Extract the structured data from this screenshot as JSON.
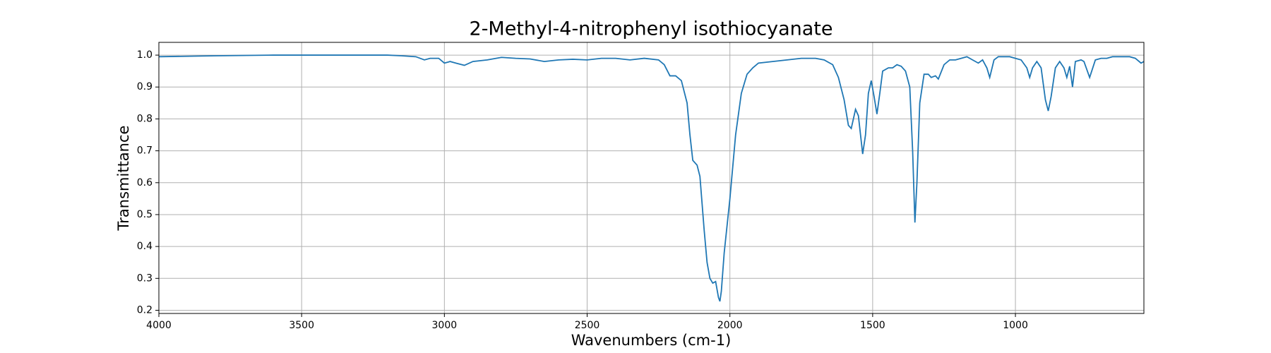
{
  "chart_data": {
    "type": "line",
    "title": "2-Methyl-4-nitrophenyl isothiocyanate",
    "x_label": "Wavenumbers (cm-1)",
    "y_label": "Transmittance",
    "xlim": [
      4000,
      550
    ],
    "ylim": [
      0.19,
      1.04
    ],
    "xticks": [
      4000,
      3500,
      3000,
      2500,
      2000,
      1500,
      1000
    ],
    "yticks": [
      0.2,
      0.3,
      0.4,
      0.5,
      0.6,
      0.7,
      0.8,
      0.9,
      {
        "value": 1,
        "label": "1.0"
      }
    ],
    "grid": true,
    "series": [
      {
        "color": "#1f77b4",
        "x": [
          4000,
          3800,
          3600,
          3400,
          3200,
          3150,
          3100,
          3070,
          3050,
          3020,
          3000,
          2980,
          2960,
          2930,
          2900,
          2850,
          2800,
          2750,
          2700,
          2650,
          2600,
          2550,
          2500,
          2450,
          2400,
          2350,
          2300,
          2250,
          2230,
          2210,
          2190,
          2170,
          2150,
          2140,
          2130,
          2115,
          2105,
          2090,
          2080,
          2070,
          2060,
          2050,
          2040,
          2035,
          2030,
          2020,
          2000,
          1980,
          1960,
          1940,
          1920,
          1900,
          1850,
          1800,
          1750,
          1700,
          1670,
          1640,
          1620,
          1600,
          1585,
          1575,
          1560,
          1550,
          1535,
          1525,
          1515,
          1505,
          1495,
          1485,
          1475,
          1465,
          1445,
          1430,
          1415,
          1400,
          1385,
          1370,
          1360,
          1352,
          1345,
          1335,
          1320,
          1305,
          1295,
          1280,
          1270,
          1250,
          1230,
          1210,
          1190,
          1170,
          1150,
          1130,
          1115,
          1100,
          1090,
          1075,
          1060,
          1020,
          1000,
          980,
          960,
          950,
          940,
          925,
          910,
          895,
          885,
          875,
          860,
          845,
          830,
          820,
          810,
          800,
          790,
          770,
          760,
          740,
          720,
          700,
          680,
          660,
          640,
          600,
          580,
          560,
          550
        ],
        "values": [
          0.995,
          0.998,
          1.0,
          1.0,
          1.0,
          0.998,
          0.995,
          0.985,
          0.99,
          0.99,
          0.975,
          0.98,
          0.975,
          0.968,
          0.98,
          0.985,
          0.993,
          0.99,
          0.988,
          0.98,
          0.985,
          0.987,
          0.985,
          0.99,
          0.99,
          0.985,
          0.99,
          0.985,
          0.97,
          0.935,
          0.935,
          0.92,
          0.85,
          0.75,
          0.67,
          0.655,
          0.62,
          0.45,
          0.35,
          0.3,
          0.285,
          0.29,
          0.24,
          0.228,
          0.26,
          0.38,
          0.55,
          0.75,
          0.88,
          0.94,
          0.96,
          0.975,
          0.98,
          0.985,
          0.99,
          0.99,
          0.985,
          0.97,
          0.93,
          0.86,
          0.78,
          0.77,
          0.83,
          0.81,
          0.69,
          0.75,
          0.88,
          0.92,
          0.87,
          0.815,
          0.88,
          0.95,
          0.96,
          0.96,
          0.97,
          0.965,
          0.95,
          0.9,
          0.7,
          0.475,
          0.6,
          0.85,
          0.94,
          0.94,
          0.93,
          0.935,
          0.925,
          0.97,
          0.985,
          0.985,
          0.99,
          0.995,
          0.985,
          0.975,
          0.985,
          0.96,
          0.93,
          0.985,
          0.995,
          0.995,
          0.99,
          0.985,
          0.96,
          0.93,
          0.96,
          0.98,
          0.96,
          0.86,
          0.825,
          0.87,
          0.96,
          0.98,
          0.96,
          0.93,
          0.965,
          0.9,
          0.98,
          0.985,
          0.98,
          0.93,
          0.985,
          0.99,
          0.99,
          0.995,
          0.995,
          0.995,
          0.99,
          0.975,
          0.98
        ]
      }
    ]
  }
}
